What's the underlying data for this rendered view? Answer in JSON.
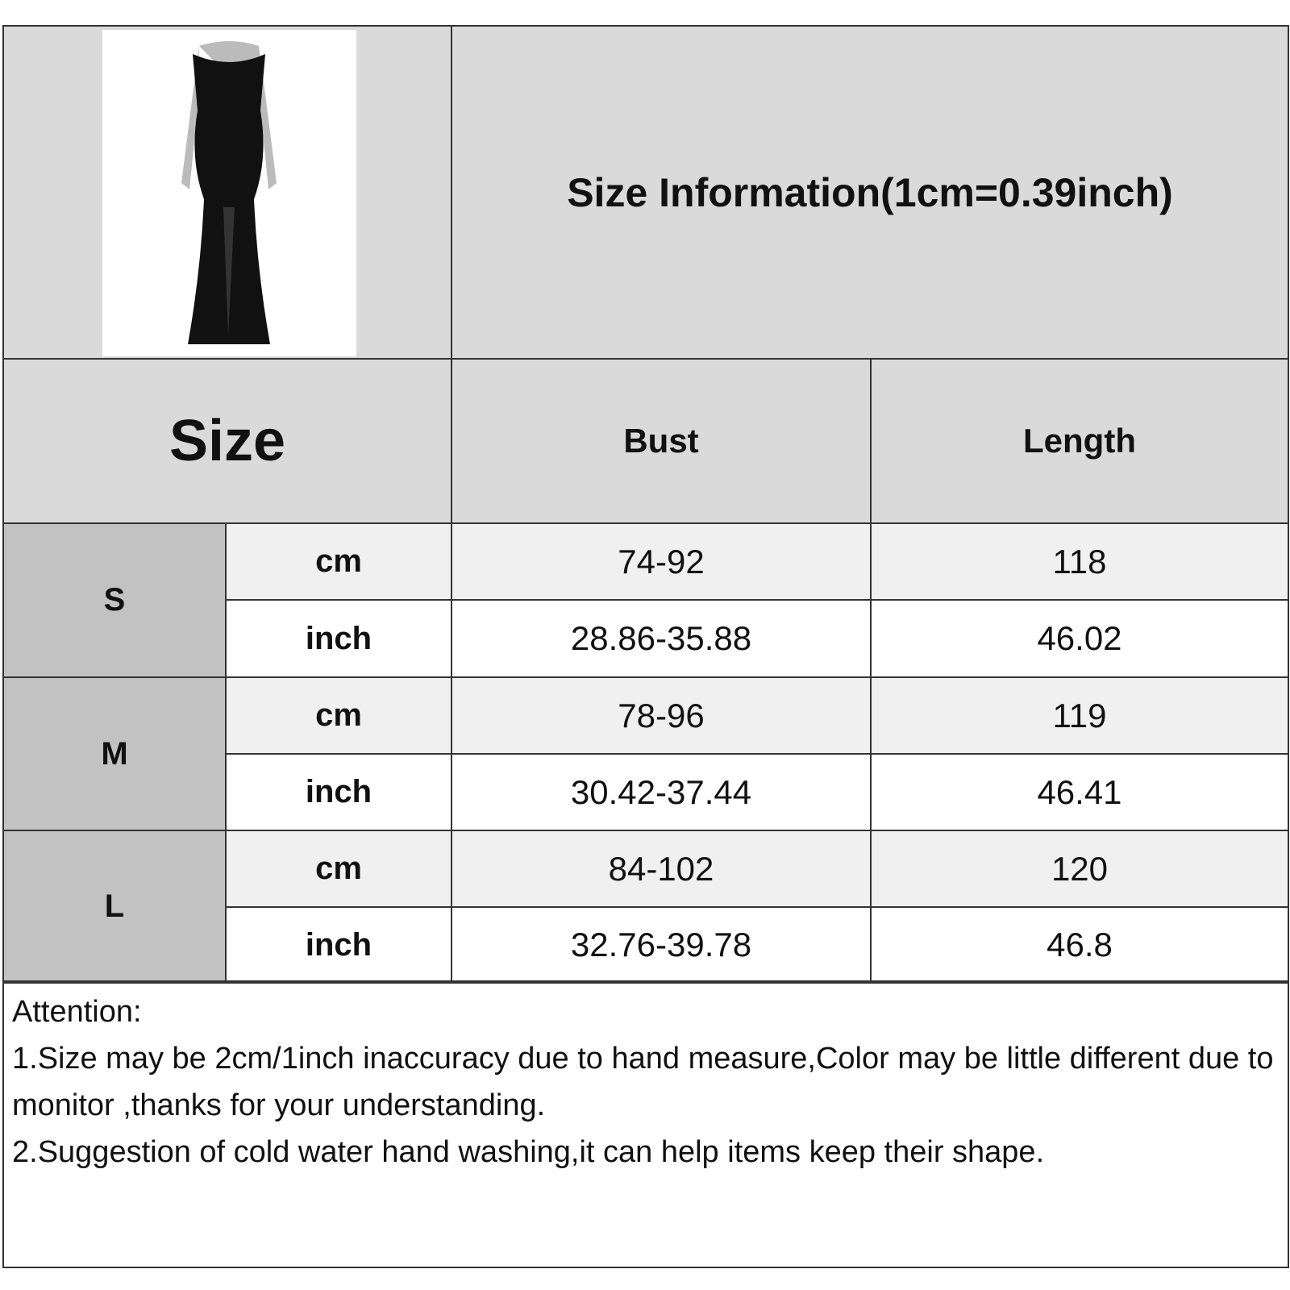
{
  "title": "Size Information(1cm=0.39inch)",
  "header": {
    "size": "Size",
    "bust": "Bust",
    "length": "Length"
  },
  "rows": [
    {
      "size": "S",
      "cm": {
        "unit": "cm",
        "bust": "74-92",
        "length": "118"
      },
      "inch": {
        "unit": "inch",
        "bust": "28.86-35.88",
        "length": "46.02"
      }
    },
    {
      "size": "M",
      "cm": {
        "unit": "cm",
        "bust": "78-96",
        "length": "119"
      },
      "inch": {
        "unit": "inch",
        "bust": "30.42-37.44",
        "length": "46.41"
      }
    },
    {
      "size": "L",
      "cm": {
        "unit": "cm",
        "bust": "84-102",
        "length": "120"
      },
      "inch": {
        "unit": "inch",
        "bust": "32.76-39.78",
        "length": "46.8"
      }
    }
  ],
  "notes": {
    "heading": "Attention:",
    "line1": "1.Size may be 2cm/1inch inaccuracy due to hand measure,Color may be little different due to monitor ,thanks for your understanding.",
    "line2": "2.Suggestion of cold water hand washing,it can help items keep their shape."
  },
  "colors": {
    "header_bg": "#dadada",
    "size_bg": "#c2c2c2",
    "cm_bg": "#f0f0f0",
    "border": "#333333"
  }
}
